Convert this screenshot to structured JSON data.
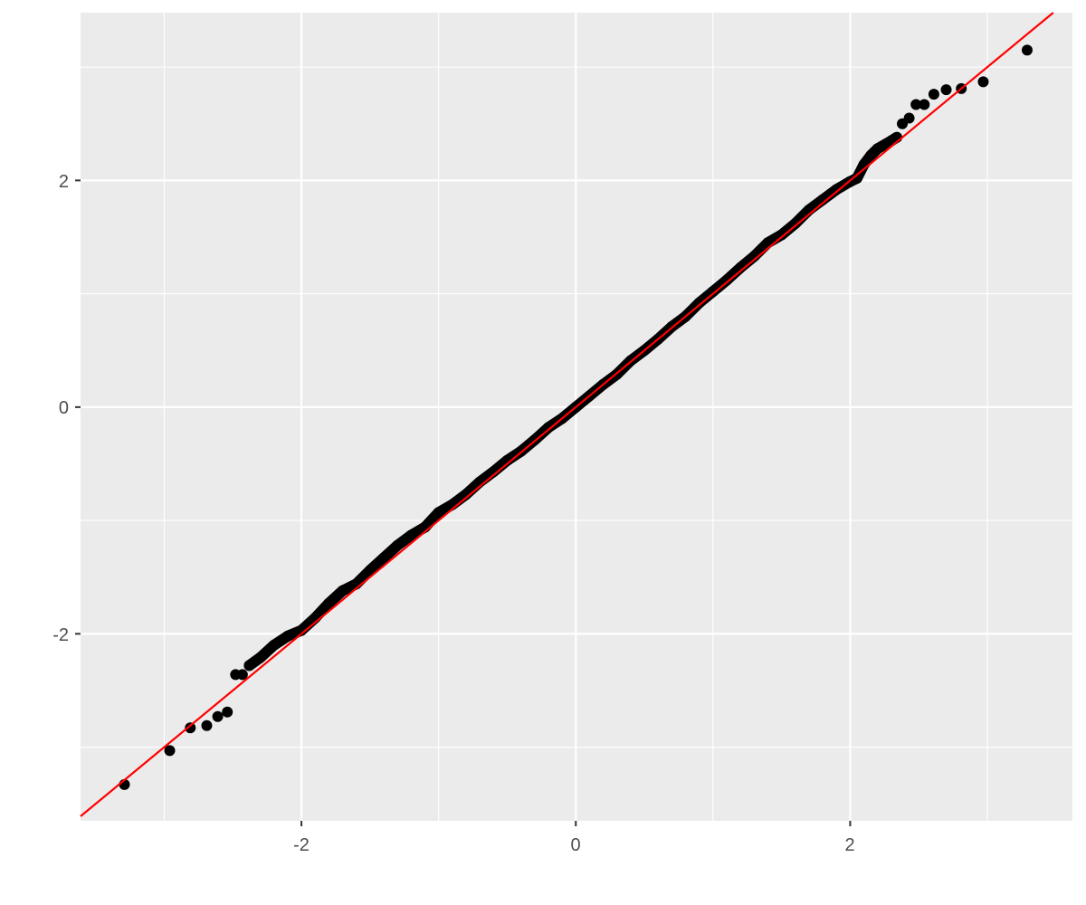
{
  "chart_data": {
    "type": "scatter",
    "title": "",
    "xlabel": "",
    "ylabel": "",
    "xlim": [
      -3.61,
      3.62
    ],
    "ylim": [
      -3.65,
      3.48
    ],
    "grid": true,
    "x_ticks": [
      -2,
      0,
      2
    ],
    "y_ticks": [
      -2,
      0,
      2
    ],
    "x_tick_labels": [
      "-2",
      "0",
      "2"
    ],
    "y_tick_labels": [
      "-2",
      "0",
      "2"
    ],
    "minor_grid": [
      -3,
      -1,
      1,
      3
    ],
    "reference_line": {
      "slope": 1.0,
      "intercept": 0.0,
      "color": "#FF0000"
    },
    "point_color": "#000000",
    "panel_color": "#EBEBEB",
    "points": [
      [
        -3.29,
        -3.33
      ],
      [
        -2.96,
        -3.03
      ],
      [
        -2.81,
        -2.83
      ],
      [
        -2.69,
        -2.81
      ],
      [
        -2.61,
        -2.73
      ],
      [
        -2.54,
        -2.69
      ],
      [
        -2.48,
        -2.36
      ],
      [
        -2.43,
        -2.36
      ],
      [
        -2.38,
        -2.28
      ],
      [
        -2.3,
        -2.21
      ],
      [
        -2.2,
        -2.1
      ],
      [
        -2.1,
        -2.02
      ],
      [
        -2.0,
        -1.97
      ],
      [
        -1.9,
        -1.86
      ],
      [
        -1.8,
        -1.73
      ],
      [
        -1.7,
        -1.62
      ],
      [
        -1.6,
        -1.56
      ],
      [
        -1.5,
        -1.44
      ],
      [
        -1.4,
        -1.33
      ],
      [
        -1.3,
        -1.22
      ],
      [
        -1.2,
        -1.13
      ],
      [
        -1.1,
        -1.06
      ],
      [
        -1.0,
        -0.93
      ],
      [
        -0.9,
        -0.86
      ],
      [
        -0.8,
        -0.77
      ],
      [
        -0.7,
        -0.66
      ],
      [
        -0.6,
        -0.57
      ],
      [
        -0.5,
        -0.47
      ],
      [
        -0.4,
        -0.39
      ],
      [
        -0.3,
        -0.29
      ],
      [
        -0.2,
        -0.18
      ],
      [
        -0.1,
        -0.1
      ],
      [
        0,
        0
      ],
      [
        0.1,
        0.1
      ],
      [
        0.2,
        0.2
      ],
      [
        0.3,
        0.29
      ],
      [
        0.4,
        0.41
      ],
      [
        0.5,
        0.5
      ],
      [
        0.6,
        0.6
      ],
      [
        0.7,
        0.71
      ],
      [
        0.8,
        0.8
      ],
      [
        0.9,
        0.92
      ],
      [
        1.0,
        1.02
      ],
      [
        1.1,
        1.12
      ],
      [
        1.2,
        1.23
      ],
      [
        1.3,
        1.33
      ],
      [
        1.4,
        1.45
      ],
      [
        1.5,
        1.52
      ],
      [
        1.6,
        1.62
      ],
      [
        1.7,
        1.74
      ],
      [
        1.8,
        1.83
      ],
      [
        1.9,
        1.92
      ],
      [
        2.0,
        1.99
      ],
      [
        2.05,
        2.02
      ],
      [
        2.1,
        2.14
      ],
      [
        2.15,
        2.22
      ],
      [
        2.2,
        2.28
      ],
      [
        2.3,
        2.35
      ],
      [
        2.34,
        2.38
      ],
      [
        2.38,
        2.5
      ],
      [
        2.43,
        2.55
      ],
      [
        2.48,
        2.67
      ],
      [
        2.54,
        2.67
      ],
      [
        2.61,
        2.76
      ],
      [
        2.7,
        2.8
      ],
      [
        2.81,
        2.81
      ],
      [
        2.97,
        2.87
      ],
      [
        3.29,
        3.15
      ]
    ]
  }
}
